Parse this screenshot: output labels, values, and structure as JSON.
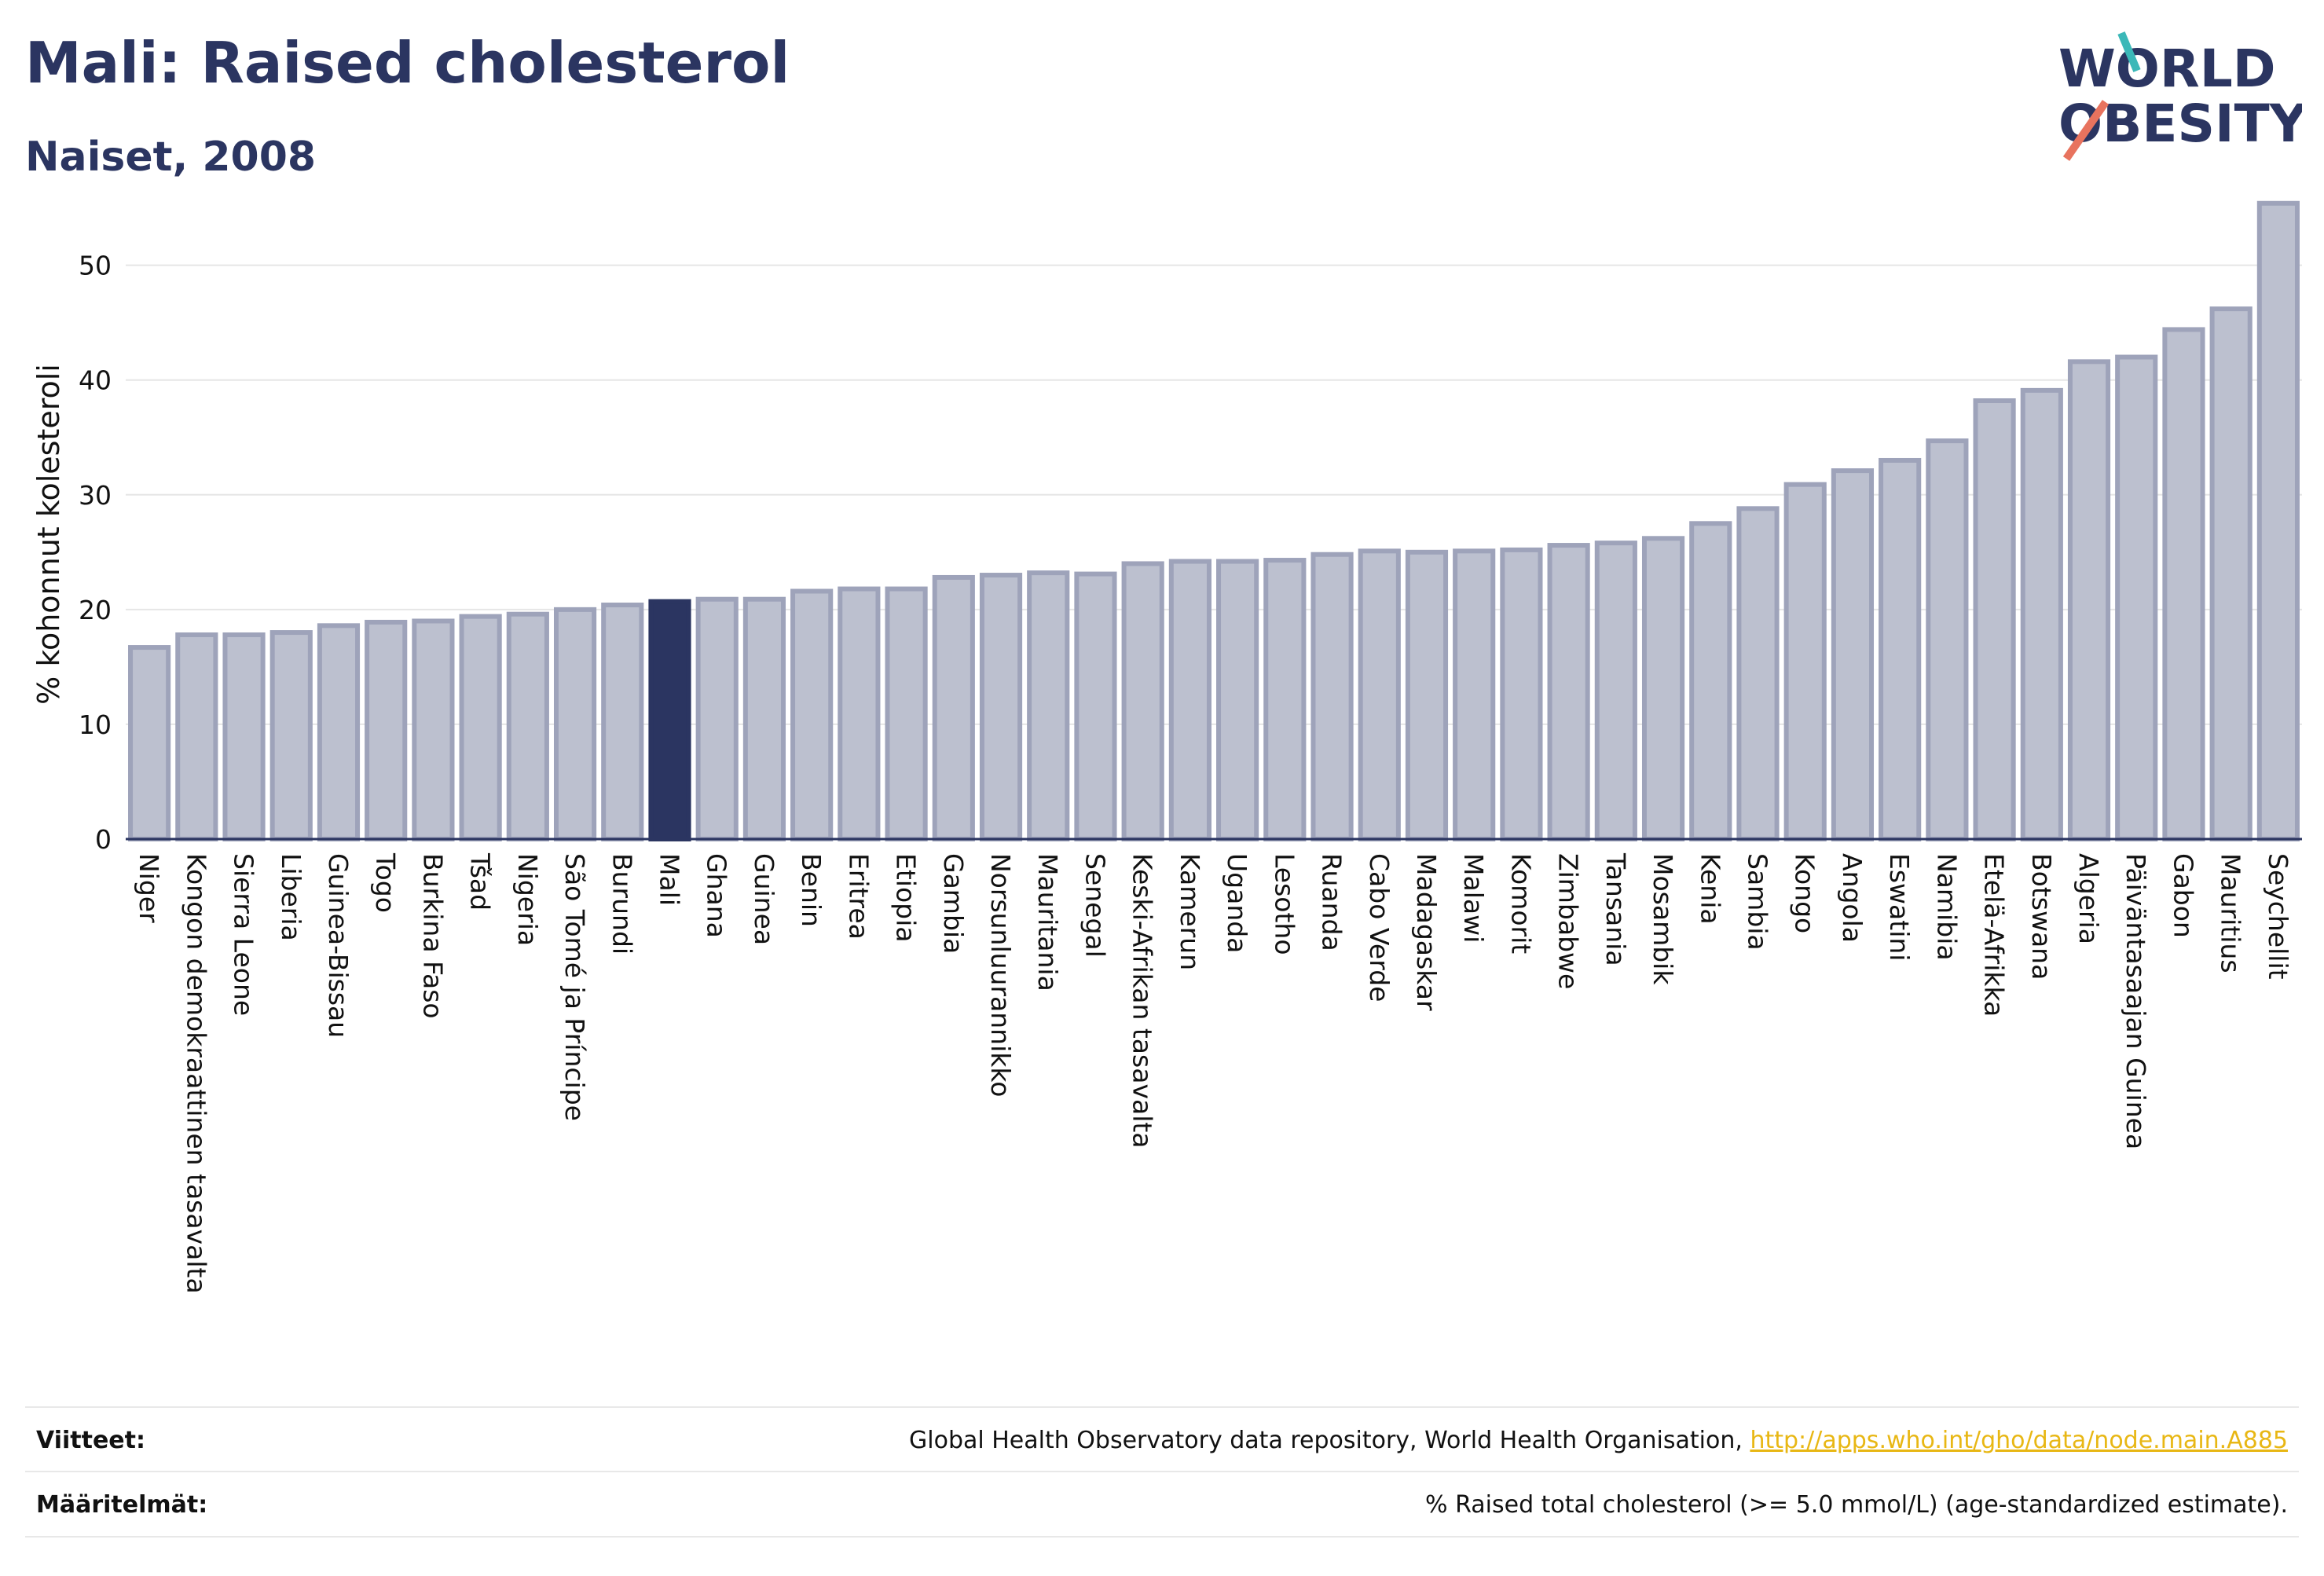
{
  "title": "Mali: Raised cholesterol",
  "subtitle": "Naiset, 2008",
  "logo": {
    "line1": "WORLD",
    "line2": "OBESITY"
  },
  "footer": {
    "sources_label": "Viitteet:",
    "sources_text": "Global Health Observatory data repository, World Health Organisation, ",
    "sources_link": "http://apps.who.int/gho/data/node.main.A885",
    "definitions_label": "Määritelmät:",
    "definitions_text": "% Raised total cholesterol (>= 5.0 mmol/L) (age-standardized estimate)."
  },
  "colors": {
    "bar": "#bcc0cf",
    "bar_border": "#9ea3ba",
    "highlight": "#2b3561",
    "title": "#2b3561",
    "link": "#e8b714"
  },
  "chart_data": {
    "type": "bar",
    "ylabel": "% kohonnut kolesteroli",
    "xlabel": "",
    "ylim": [
      0,
      56
    ],
    "yticks": [
      0,
      10,
      20,
      30,
      40,
      50
    ],
    "grid": true,
    "highlight": "Mali",
    "categories": [
      "Niger",
      "Kongon demokraattinen tasavalta",
      "Sierra Leone",
      "Liberia",
      "Guinea-Bissau",
      "Togo",
      "Burkina Faso",
      "Tšad",
      "Nigeria",
      "São Tomé ja Príncipe",
      "Burundi",
      "Mali",
      "Ghana",
      "Guinea",
      "Benin",
      "Eritrea",
      "Etiopia",
      "Gambia",
      "Norsunluurannikko",
      "Mauritania",
      "Senegal",
      "Keski-Afrikan tasavalta",
      "Kamerun",
      "Uganda",
      "Lesotho",
      "Ruanda",
      "Cabo Verde",
      "Madagaskar",
      "Malawi",
      "Komorit",
      "Zimbabwe",
      "Tansania",
      "Mosambik",
      "Kenia",
      "Sambia",
      "Kongo",
      "Angola",
      "Eswatini",
      "Namibia",
      "Etelä-Afrikka",
      "Botswana",
      "Algeria",
      "Päiväntasaajan Guinea",
      "Gabon",
      "Mauritius",
      "Seychellit"
    ],
    "values": [
      16.7,
      17.8,
      17.8,
      18.0,
      18.6,
      18.9,
      19.0,
      19.4,
      19.6,
      20.0,
      20.4,
      20.7,
      20.9,
      20.9,
      21.6,
      21.8,
      21.8,
      22.8,
      23.0,
      23.2,
      23.1,
      24.0,
      24.2,
      24.2,
      24.3,
      24.8,
      25.1,
      25.0,
      25.1,
      25.2,
      25.6,
      25.8,
      26.2,
      27.5,
      28.8,
      30.9,
      32.1,
      33.0,
      34.7,
      38.2,
      39.1,
      41.6,
      42.0,
      44.4,
      46.2,
      55.4
    ]
  }
}
